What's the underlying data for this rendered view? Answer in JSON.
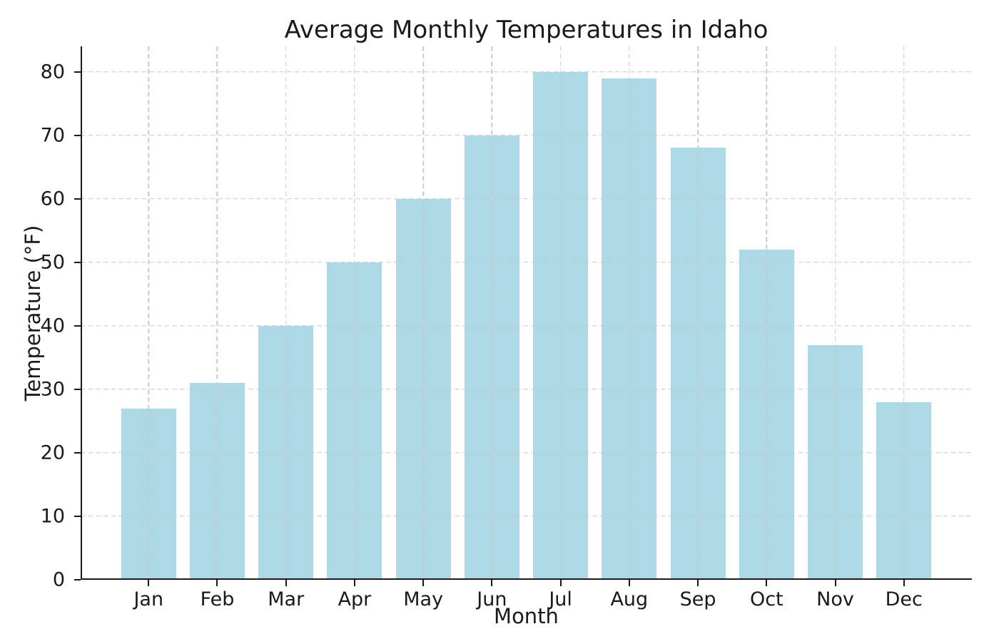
{
  "chart_data": {
    "type": "bar",
    "title": "Average Monthly Temperatures in Idaho",
    "xlabel": "Month",
    "ylabel": "Temperature (°F)",
    "categories": [
      "Jan",
      "Feb",
      "Mar",
      "Apr",
      "May",
      "Jun",
      "Jul",
      "Aug",
      "Sep",
      "Oct",
      "Nov",
      "Dec"
    ],
    "values": [
      27,
      31,
      40,
      50,
      60,
      70,
      80,
      79,
      68,
      52,
      37,
      28
    ],
    "yticks": [
      0,
      10,
      20,
      30,
      40,
      50,
      60,
      70,
      80
    ],
    "ylim": [
      0,
      84
    ],
    "bar_color": "#add8e6",
    "grid": {
      "visible": true,
      "axis": "both",
      "style": "dashed",
      "color": "#c9c9c9",
      "above_bars": true
    },
    "axis_color": "#1a1a1a",
    "text_color": "#1a1a1a",
    "background": "#ffffff",
    "legend": "none"
  }
}
